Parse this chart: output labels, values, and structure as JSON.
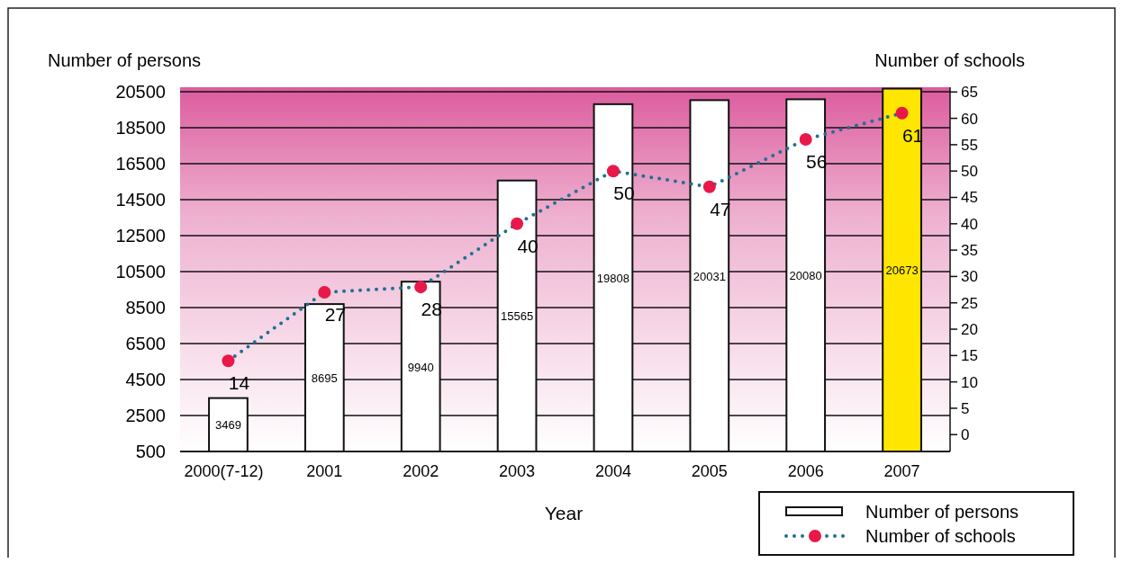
{
  "chart_data": {
    "type": "bar",
    "xlabel": "Year",
    "ylabel": "Number of persons",
    "y2label": "Number of schools",
    "categories": [
      "2000(7-12)",
      "2001",
      "2002",
      "2003",
      "2004",
      "2005",
      "2006",
      "2007"
    ],
    "series": [
      {
        "name": "Number of persons",
        "colors": [
          "#ffffff",
          "#ffffff",
          "#ffffff",
          "#ffffff",
          "#ffffff",
          "#ffffff",
          "#ffffff",
          "#ffe600"
        ],
        "values": [
          3469,
          8695,
          9940,
          15565,
          19808,
          20031,
          20080,
          20673
        ]
      },
      {
        "name": "Number of schools",
        "type": "line",
        "axis": "y2",
        "color": "#1f6f95",
        "marker": "circle",
        "line_style": "dotted",
        "values": [
          14,
          27,
          28,
          40,
          50,
          47,
          56,
          61
        ]
      }
    ],
    "ylim": [
      500,
      20750
    ],
    "yticks": [
      500,
      2500,
      4500,
      6500,
      8500,
      10500,
      12500,
      14500,
      16500,
      18500,
      20500
    ],
    "y2lim": [
      -3.2,
      65.9
    ],
    "y2ticks": [
      0,
      5,
      10,
      15,
      20,
      25,
      30,
      35,
      40,
      45,
      50,
      55,
      60,
      65
    ],
    "grid": "y",
    "legend": "bottom right",
    "data_labels": true
  }
}
